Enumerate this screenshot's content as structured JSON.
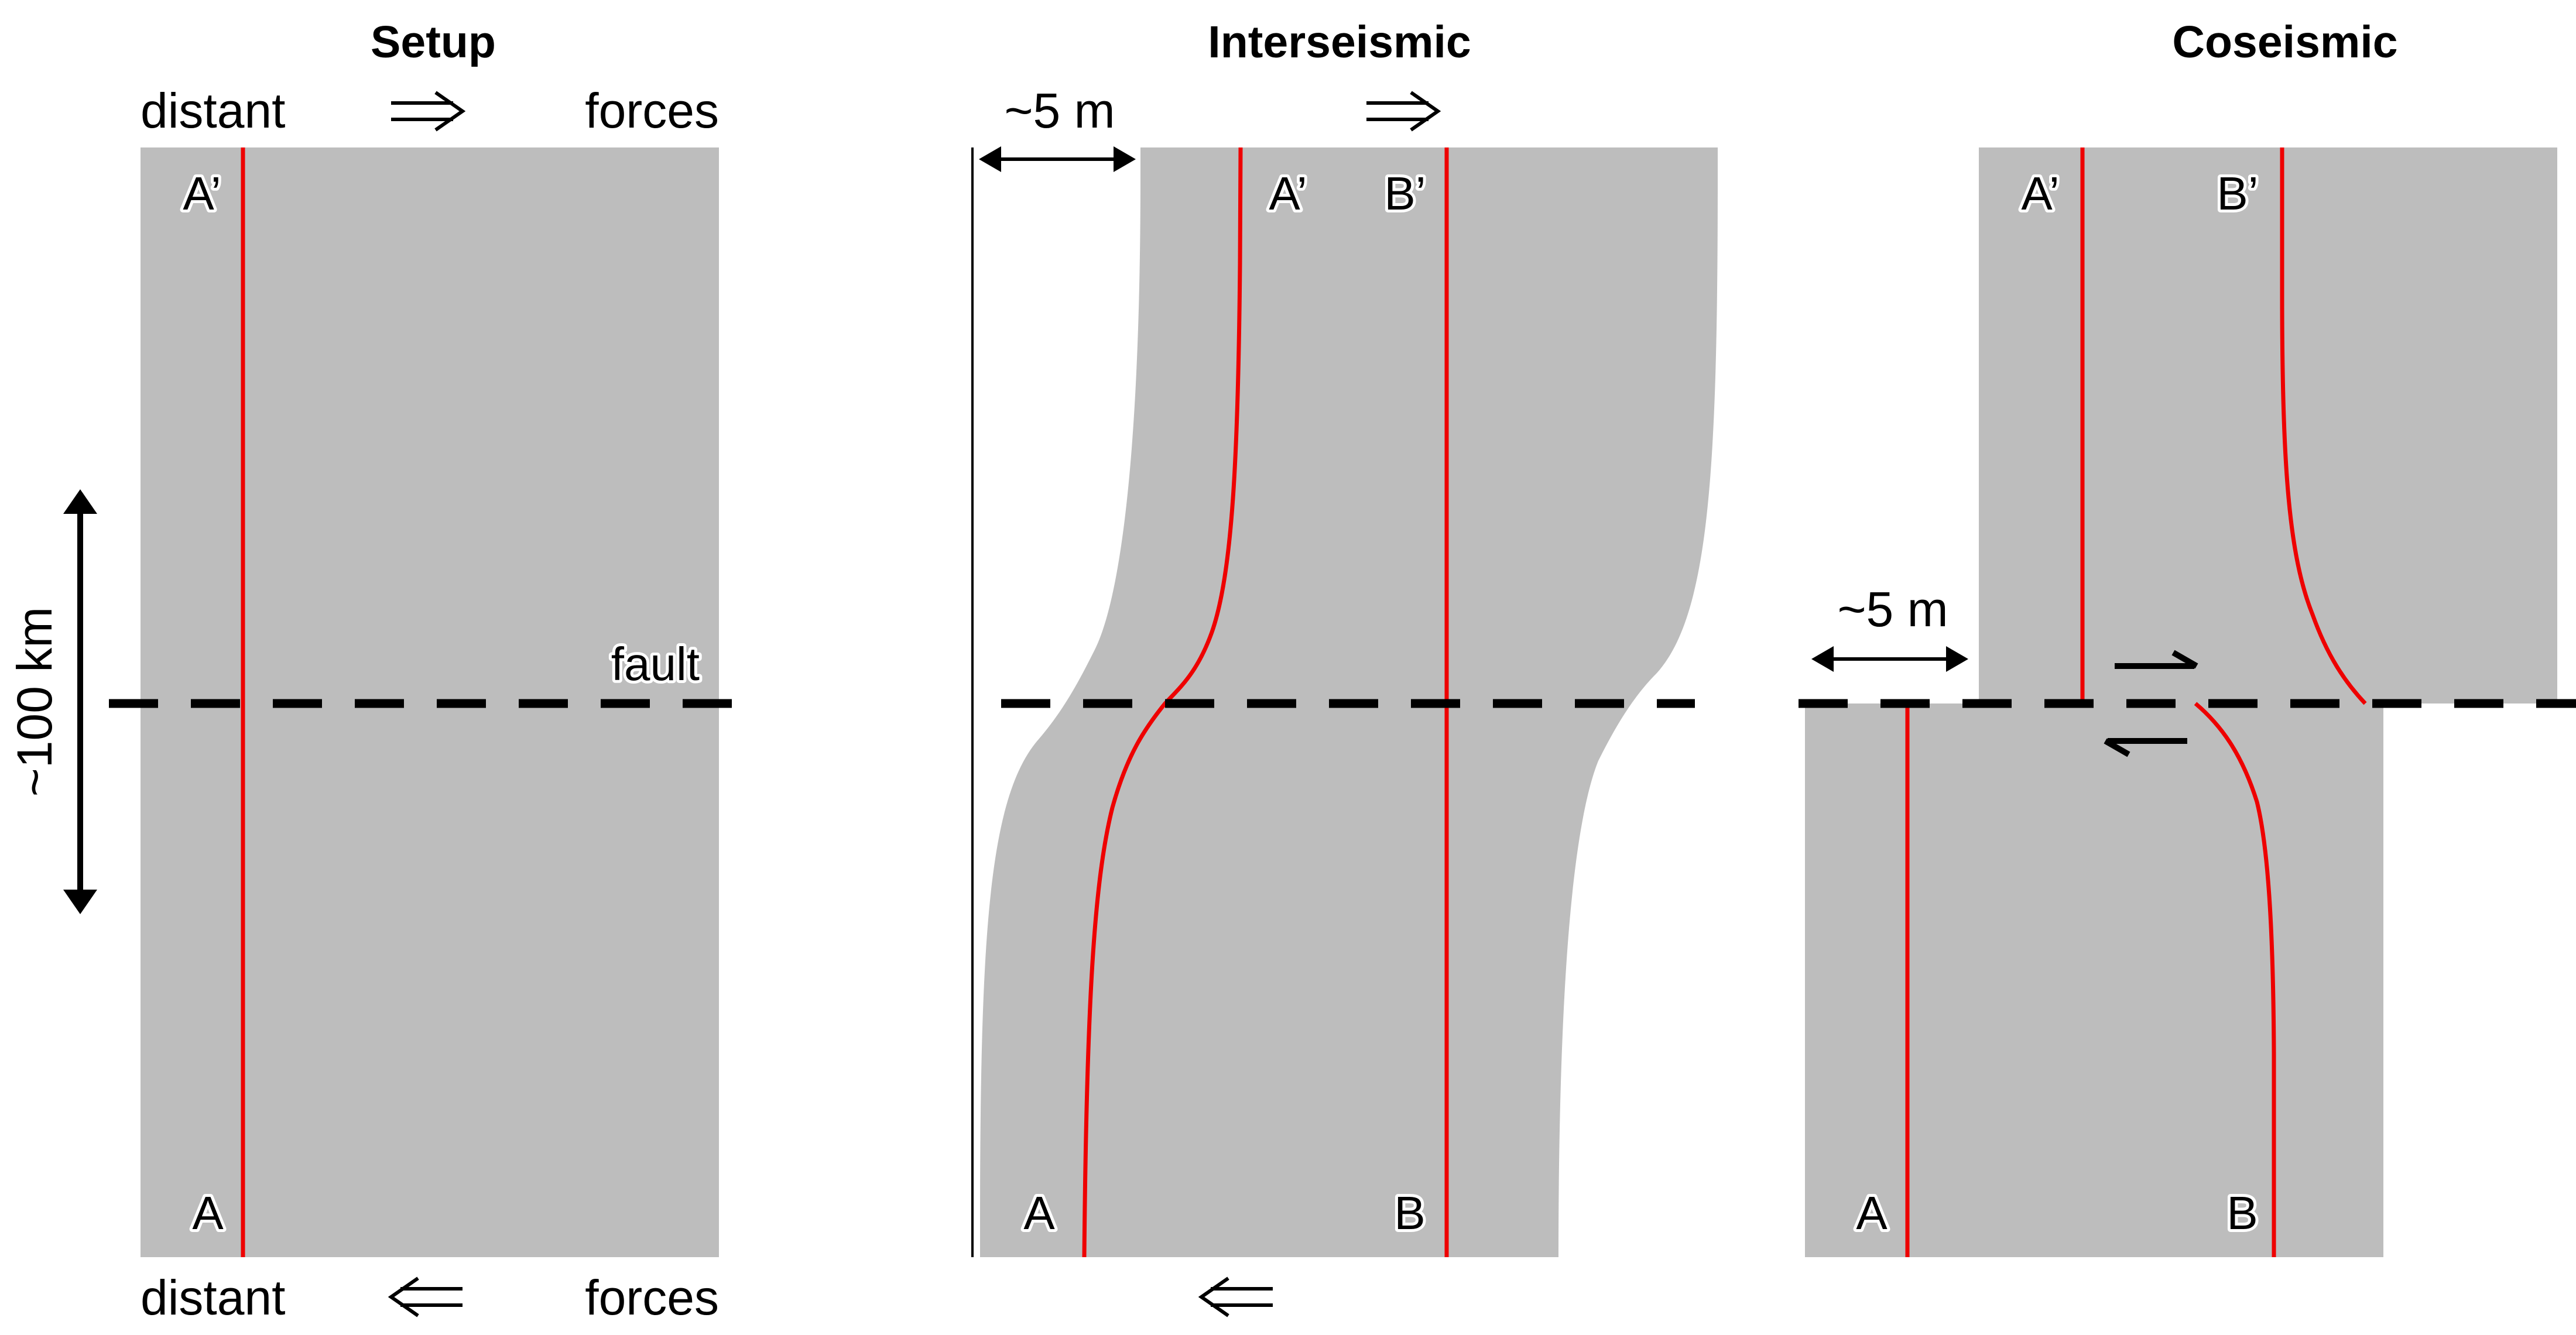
{
  "panels": {
    "setup": {
      "title": "Setup",
      "top_left_label": "distant",
      "top_right_label": "forces",
      "bottom_left_label": "distant",
      "bottom_right_label": "forces",
      "point_top": "A’",
      "point_bottom": "A",
      "fault_label": "fault",
      "scale_label": "~100 km"
    },
    "interseismic": {
      "title": "Interseismic",
      "offset_label": "~5 m",
      "point_top_a": "A’",
      "point_top_b": "B’",
      "point_bottom_a": "A",
      "point_bottom_b": "B"
    },
    "coseismic": {
      "title": "Coseismic",
      "offset_label": "~5 m",
      "point_top_a": "A’",
      "point_top_b": "B’",
      "point_bottom_a": "A",
      "point_bottom_b": "B"
    }
  },
  "colors": {
    "block": "#bdbdbd",
    "marker_line": "#ee0000",
    "fault": "#000000"
  },
  "icons": {
    "force_right": "double-arrow-right-icon",
    "force_left": "double-arrow-left-icon",
    "slip_sense": "half-arrow-icon"
  }
}
